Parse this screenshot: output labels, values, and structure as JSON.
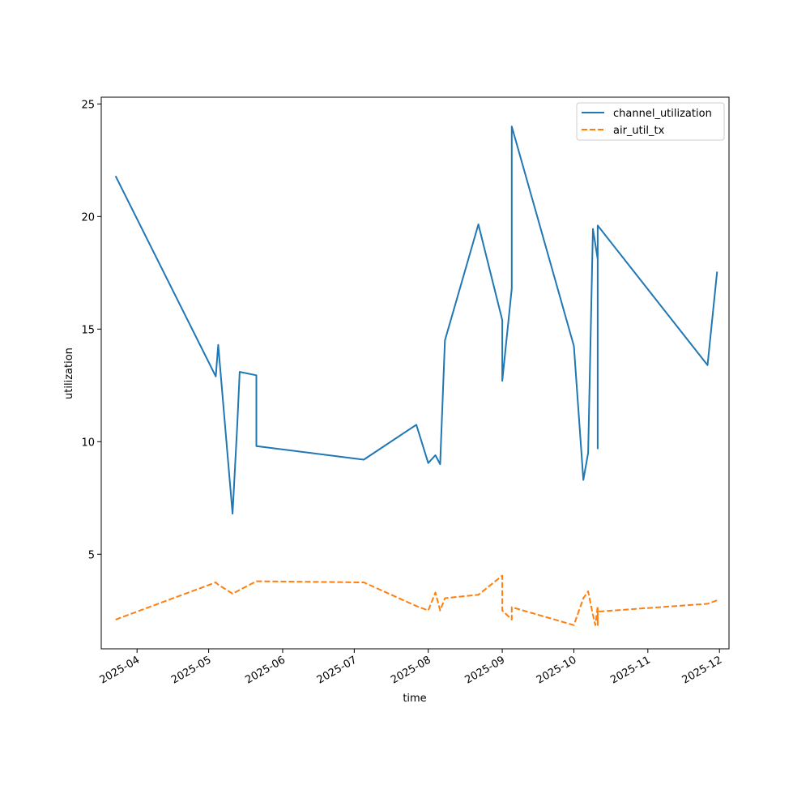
{
  "chart_data": {
    "type": "line",
    "xlabel": "time",
    "ylabel": "utilization",
    "xlim": [
      "2025-03-17",
      "2025-12-05"
    ],
    "ylim": [
      0.8,
      25.3
    ],
    "x_ticks": [
      "2025-04",
      "2025-05",
      "2025-06",
      "2025-07",
      "2025-08",
      "2025-09",
      "2025-10",
      "2025-11",
      "2025-12"
    ],
    "y_ticks": [
      5,
      10,
      15,
      20,
      25
    ],
    "grid": false,
    "legend_position": "top-right",
    "series": [
      {
        "name": "channel_utilization",
        "color": "#1f77b4",
        "dash": "solid",
        "points": [
          [
            "2025-03-23",
            21.8
          ],
          [
            "2025-05-04",
            12.9
          ],
          [
            "2025-05-05",
            14.3
          ],
          [
            "2025-05-11",
            6.8
          ],
          [
            "2025-05-13",
            10.8
          ],
          [
            "2025-05-14",
            13.1
          ],
          [
            "2025-05-21",
            12.95
          ],
          [
            "2025-05-21",
            9.8
          ],
          [
            "2025-07-05",
            9.2
          ],
          [
            "2025-07-27",
            10.75
          ],
          [
            "2025-08-01",
            9.05
          ],
          [
            "2025-08-04",
            9.4
          ],
          [
            "2025-08-06",
            9.0
          ],
          [
            "2025-08-08",
            14.5
          ],
          [
            "2025-08-22",
            19.65
          ],
          [
            "2025-09-01",
            15.4
          ],
          [
            "2025-09-01",
            12.7
          ],
          [
            "2025-09-05",
            16.8
          ],
          [
            "2025-09-05",
            17.9
          ],
          [
            "2025-09-05",
            24.0
          ],
          [
            "2025-10-01",
            14.25
          ],
          [
            "2025-10-05",
            8.3
          ],
          [
            "2025-10-07",
            9.5
          ],
          [
            "2025-10-09",
            19.45
          ],
          [
            "2025-10-11",
            18.1
          ],
          [
            "2025-10-11",
            18.6
          ],
          [
            "2025-10-11",
            9.7
          ],
          [
            "2025-10-11",
            19.6
          ],
          [
            "2025-11-26",
            13.4
          ],
          [
            "2025-11-30",
            17.55
          ]
        ]
      },
      {
        "name": "air_util_tx",
        "color": "#ff7f0e",
        "dash": "dashed",
        "points": [
          [
            "2025-03-23",
            2.1
          ],
          [
            "2025-05-04",
            3.75
          ],
          [
            "2025-05-05",
            3.65
          ],
          [
            "2025-05-11",
            3.25
          ],
          [
            "2025-05-21",
            3.8
          ],
          [
            "2025-07-05",
            3.75
          ],
          [
            "2025-07-27",
            2.7
          ],
          [
            "2025-08-01",
            2.5
          ],
          [
            "2025-08-04",
            3.3
          ],
          [
            "2025-08-06",
            2.5
          ],
          [
            "2025-08-08",
            3.05
          ],
          [
            "2025-08-22",
            3.2
          ],
          [
            "2025-09-01",
            4.05
          ],
          [
            "2025-09-01",
            2.5
          ],
          [
            "2025-09-05",
            2.1
          ],
          [
            "2025-09-05",
            2.65
          ],
          [
            "2025-10-01",
            1.85
          ],
          [
            "2025-10-05",
            3.05
          ],
          [
            "2025-10-07",
            3.35
          ],
          [
            "2025-10-09",
            2.3
          ],
          [
            "2025-10-10",
            1.85
          ],
          [
            "2025-10-11",
            2.7
          ],
          [
            "2025-10-11",
            1.85
          ],
          [
            "2025-10-11",
            2.45
          ],
          [
            "2025-11-26",
            2.8
          ],
          [
            "2025-11-30",
            2.95
          ]
        ]
      }
    ]
  }
}
